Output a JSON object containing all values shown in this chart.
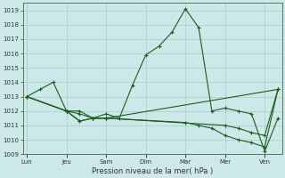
{
  "xlabel": "Pression niveau de la mer( hPa )",
  "background_color": "#cce8e8",
  "grid_color": "#aacccc",
  "line_color": "#1a5e1a",
  "ylim": [
    1009,
    1019.5
  ],
  "yticks": [
    1009,
    1010,
    1011,
    1012,
    1013,
    1014,
    1015,
    1016,
    1017,
    1018,
    1019
  ],
  "day_labels": [
    "Lun",
    "Jeu",
    "Sam",
    "Dim",
    "Mar",
    "Mer",
    "Ven"
  ],
  "day_x": [
    0,
    3,
    6,
    9,
    12,
    15,
    18
  ],
  "xmax": 19,
  "line1_x": [
    0,
    1,
    2,
    3,
    4,
    5,
    6,
    7,
    8,
    9,
    10,
    11,
    12,
    13,
    14,
    15,
    16,
    17,
    18,
    19
  ],
  "line1_y": [
    1013.0,
    1013.5,
    1014.0,
    1012.0,
    1012.0,
    1011.5,
    1011.8,
    1011.5,
    1013.8,
    1015.9,
    1016.5,
    1017.5,
    1019.1,
    1017.8,
    1012.0,
    1012.2,
    1012.0,
    1011.8,
    1009.2,
    1011.5
  ],
  "line2_x": [
    0,
    3,
    4,
    5,
    6,
    19
  ],
  "line2_y": [
    1013.0,
    1012.0,
    1011.8,
    1011.5,
    1011.5,
    1013.5
  ],
  "line3_x": [
    0,
    3,
    4,
    5,
    6,
    15,
    16,
    17,
    18,
    19
  ],
  "line3_y": [
    1013.0,
    1012.0,
    1011.3,
    1011.5,
    1011.5,
    1011.0,
    1010.8,
    1010.5,
    1010.3,
    1013.5
  ],
  "line4_x": [
    0,
    3,
    4,
    5,
    6,
    12,
    13,
    14,
    15,
    16,
    17,
    18,
    19
  ],
  "line4_y": [
    1013.0,
    1012.0,
    1011.3,
    1011.5,
    1011.5,
    1011.2,
    1011.0,
    1010.8,
    1010.3,
    1010.0,
    1009.8,
    1009.5,
    1013.5
  ]
}
